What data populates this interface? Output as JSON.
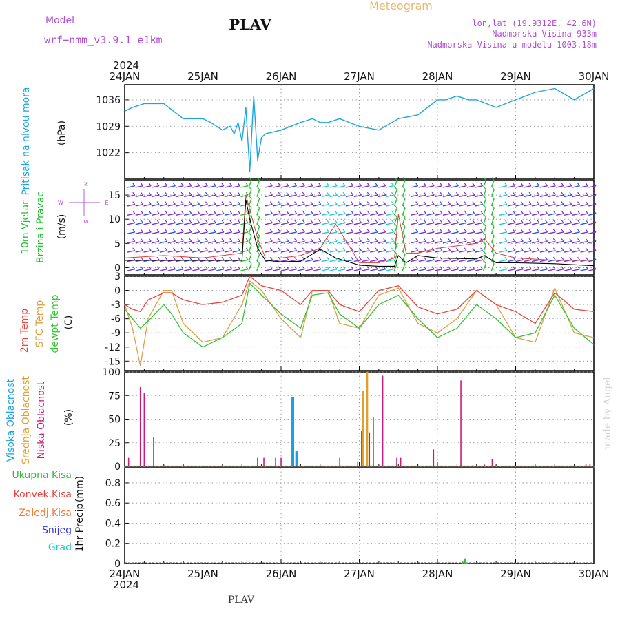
{
  "header": {
    "model_label": "Model",
    "model_name": "wrf−nmm_v3.9.1 e1km",
    "station": "PLAV",
    "product": "Meteogram",
    "lonlat": "lon,lat (19.9312E, 42.6N)",
    "elevation": "Nadmorska Visina 933m",
    "model_elevation": "Nadmorska Visina u modelu 1003.18m",
    "footer_station": "PLAV",
    "watermark": "made by Angel"
  },
  "colors": {
    "pressure": "#1aa7e0",
    "wind_speed": "#000000",
    "gust": "#e03a3a",
    "wind_barbs_primary": "#7a2fd0",
    "wind_barbs_blue": "#2f4fe8",
    "wind_barbs_cyan": "#22c8d8",
    "wind_barbs_green": "#22c030",
    "temp_2m": "#e8453c",
    "temp_sfc": "#dca040",
    "dewpt": "#33c433",
    "cloud_high": "#1aa0e0",
    "cloud_mid": "#e0a030",
    "cloud_low": "#cc1a7a",
    "precip_total": "#33bb33",
    "precip_conv": "#e84040",
    "precip_frozen": "#f07830",
    "snow": "#3030e0",
    "hail": "#20c8c8",
    "purple_text": "#b24cd8",
    "title_orange": "#e8b870"
  },
  "time_axis": {
    "year": "2024",
    "ticks": [
      "24JAN",
      "25JAN",
      "26JAN",
      "27JAN",
      "28JAN",
      "29JAN",
      "30JAN"
    ]
  },
  "chart_data": [
    {
      "id": "pressure",
      "type": "line",
      "ylabel_main": "Pritisak na nivou mora",
      "ylabel_unit": "(hPa)",
      "yticks": [
        "1022",
        "1029",
        "1036"
      ],
      "ylim": [
        1015,
        1040
      ],
      "x": [
        0,
        0.1,
        0.25,
        0.5,
        0.75,
        0.9,
        1.0,
        1.1,
        1.25,
        1.35,
        1.4,
        1.45,
        1.5,
        1.55,
        1.6,
        1.65,
        1.7,
        1.75,
        1.8,
        2.0,
        2.25,
        2.4,
        2.5,
        2.6,
        2.75,
        3.0,
        3.25,
        3.5,
        3.75,
        4.0,
        4.1,
        4.25,
        4.4,
        4.5,
        4.75,
        5.0,
        5.25,
        5.5,
        5.75,
        6.0
      ],
      "series": [
        {
          "name": "",
          "values": [
            1033,
            1034,
            1035,
            1035,
            1031,
            1031,
            1031,
            1030,
            1028,
            1029,
            1027,
            1030,
            1025,
            1034,
            1017,
            1037,
            1020,
            1026,
            1027,
            1028,
            1030,
            1031,
            1030,
            1030,
            1031,
            1029,
            1028,
            1031,
            1032,
            1036,
            1036,
            1037,
            1036,
            1036,
            1034,
            1036,
            1038,
            1039,
            1036,
            1039
          ]
        }
      ]
    },
    {
      "id": "wind",
      "type": "line",
      "ylabel_main": "10m Vjetar",
      "ylabel_sub": "Brzina i Pravac",
      "ylabel_unit": "(m/s)",
      "compass": [
        "W",
        "E",
        "N",
        "S"
      ],
      "yticks": [
        "0",
        "5",
        "10",
        "15"
      ],
      "ylim": [
        -1.5,
        18
      ],
      "x": [
        0,
        0.5,
        1.0,
        1.5,
        1.55,
        1.6,
        1.7,
        1.8,
        2.0,
        2.25,
        2.5,
        2.7,
        3.0,
        3.25,
        3.45,
        3.5,
        3.6,
        3.75,
        4.0,
        4.5,
        4.6,
        4.75,
        5.0,
        5.5,
        6.0
      ],
      "series": [
        {
          "name": "",
          "values": [
            1.5,
            1.5,
            1.5,
            1.5,
            14,
            10,
            4,
            1.5,
            1.2,
            1.3,
            3.8,
            2.0,
            0.5,
            0.3,
            0.3,
            2.5,
            1.0,
            2.5,
            2.0,
            1.8,
            2.5,
            1.0,
            1.0,
            0.8,
            0.4
          ]
        },
        {
          "name": "",
          "values": [
            2,
            2.5,
            2,
            3,
            15,
            12,
            6,
            2,
            2,
            2.5,
            4,
            9,
            1,
            1,
            2,
            11,
            3,
            3,
            4,
            5,
            6,
            3,
            2,
            1.5,
            1.5
          ]
        }
      ]
    },
    {
      "id": "temperature",
      "type": "line",
      "ylabel_lines": [
        "2m Temp",
        "SFC Temp",
        "dewpt Temp"
      ],
      "ylabel_unit": "(C)",
      "yticks": [
        "-15",
        "-12",
        "-9",
        "-6",
        "-3",
        "0",
        "3"
      ],
      "ylim": [
        -17,
        3
      ],
      "x": [
        0,
        0.1,
        0.2,
        0.3,
        0.5,
        0.6,
        0.75,
        1.0,
        1.25,
        1.5,
        1.6,
        1.75,
        2.0,
        2.25,
        2.4,
        2.6,
        2.75,
        3.0,
        3.25,
        3.5,
        3.75,
        4.0,
        4.25,
        4.5,
        4.75,
        5.0,
        5.25,
        5.5,
        5.75,
        6.0
      ],
      "series": [
        {
          "name": "2m Temp",
          "values": [
            -3,
            -4,
            -4.5,
            -2,
            -0.5,
            -0.5,
            -2,
            -3,
            -2.5,
            -1,
            3,
            1,
            0,
            -3,
            0,
            0,
            -3,
            -4.5,
            0,
            1,
            -3.5,
            -5,
            -4,
            0,
            -3,
            -4.5,
            -7,
            -0.5,
            -4,
            -4.5
          ]
        },
        {
          "name": "SFC Temp",
          "values": [
            -3,
            -8,
            -16,
            -6,
            0,
            0,
            -7,
            -11,
            -10,
            -3,
            2,
            0,
            -6,
            -10,
            0,
            0,
            -7,
            -8,
            -1,
            0.5,
            -7,
            -9,
            -6,
            0,
            -3,
            -10,
            -11,
            0.5,
            -9,
            -10
          ]
        },
        {
          "name": "dewpt Temp",
          "values": [
            -4,
            -6,
            -8,
            -6.5,
            -3,
            -5,
            -9,
            -12,
            -10,
            -7,
            1.5,
            -1,
            -5,
            -8,
            -1,
            -0.5,
            -5,
            -8,
            -3,
            -1,
            -6,
            -10,
            -8,
            -3,
            -6,
            -10,
            -9,
            -1,
            -8,
            -11.5
          ]
        }
      ]
    },
    {
      "id": "clouds",
      "type": "bar",
      "ylabel_lines": [
        "Visoka Oblacnost",
        "Srednja Oblacnost",
        "Niska Oblacnost"
      ],
      "ylabel_unit": "(%)",
      "yticks": [
        "0",
        "25",
        "50",
        "75",
        "100"
      ],
      "ylim": [
        0,
        100
      ],
      "series": [
        {
          "name": "Visoka Oblacnost",
          "x": [
            2.15,
            2.2
          ],
          "values": [
            73,
            16
          ]
        },
        {
          "name": "Srednja Oblacnost",
          "x": [
            3.05,
            3.1
          ],
          "values": [
            80,
            100
          ]
        },
        {
          "name": "Niska Oblacnost",
          "x": [
            0.05,
            0.2,
            0.25,
            0.37,
            1.7,
            1.78,
            1.93,
            2.0,
            2.75,
            2.98,
            3.03,
            3.13,
            3.18,
            3.3,
            3.48,
            3.53,
            3.95,
            4.3,
            4.45,
            4.6,
            4.7,
            5.25,
            5.9,
            5.95
          ],
          "values": [
            9,
            84,
            78,
            31,
            9,
            9,
            9,
            9,
            9,
            5,
            38,
            36,
            52,
            96,
            9,
            9,
            18,
            91,
            1,
            2,
            8,
            1,
            3,
            3
          ]
        }
      ]
    },
    {
      "id": "precip",
      "type": "bar",
      "ylabel_unit_lines": [
        "1hr Precip",
        "(mm)"
      ],
      "legend": [
        "Ukupna Kisa",
        "Konvek.Kisa",
        "Zaledj.Kisa",
        "Snijeg",
        "Grad"
      ],
      "yticks": [
        "0",
        "0.2",
        "0.4",
        "0.6",
        "0.8"
      ],
      "ylim": [
        0,
        0.95
      ],
      "series": [
        {
          "name": "Ukupna Kisa",
          "x": [
            4.32,
            4.35,
            4.38
          ],
          "values": [
            0.02,
            0.05,
            0.01
          ]
        }
      ]
    }
  ]
}
